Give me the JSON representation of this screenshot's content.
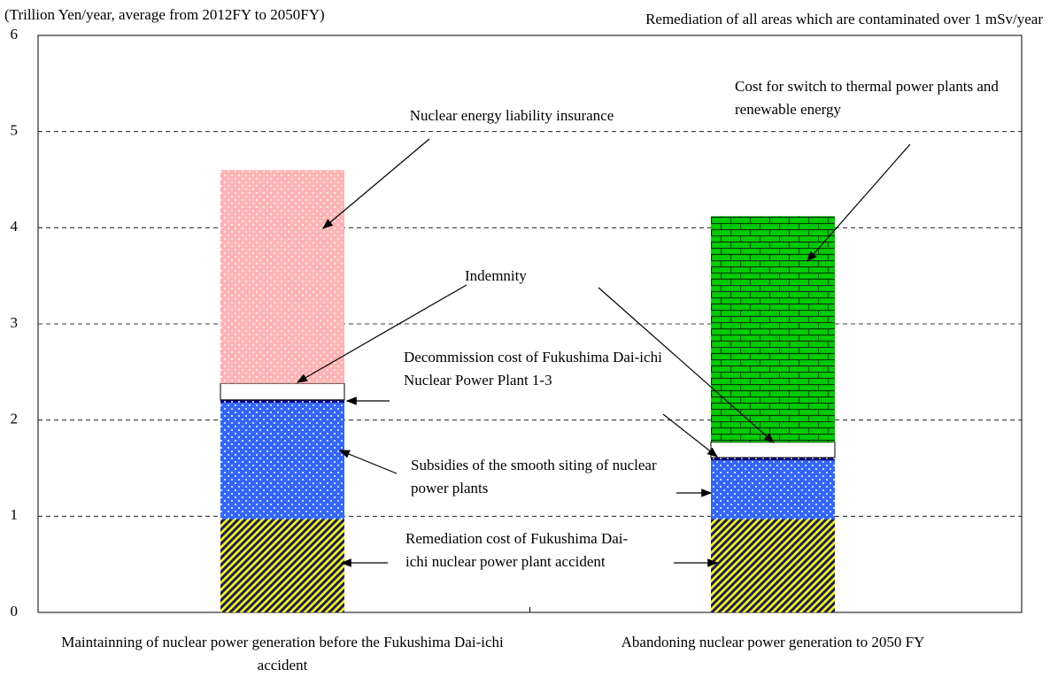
{
  "chart_data": {
    "type": "stacked-bar",
    "y_label": "(Trillion Yen/year, average from 2012FY to 2050FY)",
    "subtitle": "Remediation of  all areas which are contaminated over 1 mSv/year",
    "categories": [
      "Maintainning of nuclear power generation before the Fukushima Dai-ichi accident",
      "Abandoning nuclear power generation to 2050 FY"
    ],
    "series": [
      {
        "name": "Remediation cost of Fukushima Dai-ichi nuclear power plant accident",
        "color": "#ffff00",
        "pattern": "stripes",
        "values": [
          0.97,
          0.97
        ]
      },
      {
        "name": "Subsidies of the smooth siting of nuclear power plants",
        "color": "#3366ff",
        "pattern": "dots",
        "values": [
          1.21,
          0.61
        ]
      },
      {
        "name": "Decommission cost of Fukushima  Dai-ichi Nuclear Power Plant 1-3",
        "color": "#000080",
        "pattern": "dots",
        "values": [
          0.03,
          0.03
        ]
      },
      {
        "name": "Indemnity",
        "color": "#ffffff",
        "pattern": "none",
        "values": [
          0.17,
          0.16
        ]
      },
      {
        "name": "Nuclear energy liability insurance",
        "color": "#ffb3b3",
        "pattern": "dots",
        "values": [
          2.22,
          null
        ]
      },
      {
        "name": "Cost for switch to thermal power plants and renewable energy",
        "color": "#00cc00",
        "pattern": "bricks",
        "values": [
          null,
          2.35
        ]
      }
    ],
    "ylim": [
      0,
      6
    ],
    "yticks": [
      0,
      1,
      2,
      3,
      4,
      5,
      6
    ],
    "grid": true
  }
}
